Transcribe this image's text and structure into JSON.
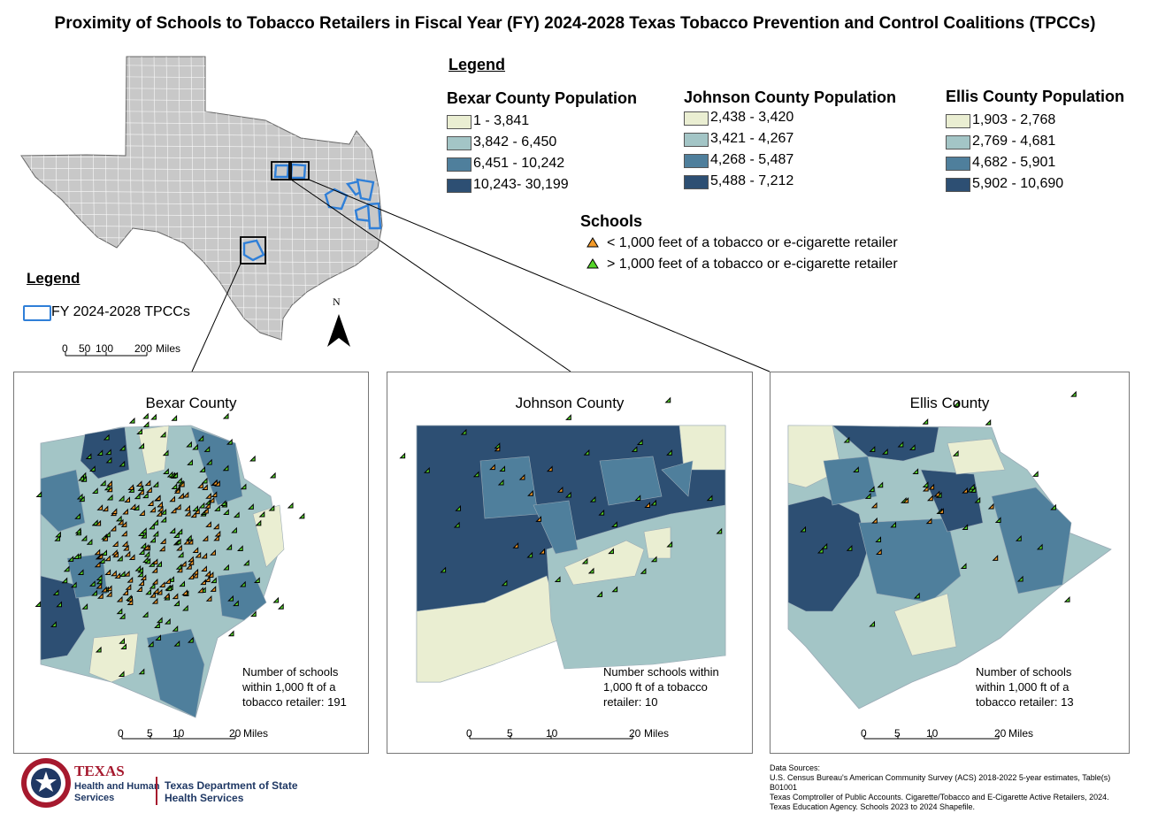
{
  "title": "Proximity of Schools to Tobacco Retailers in Fiscal Year (FY) 2024-2028 Texas Tobacco Prevention and Control Coalitions (TPCCs)",
  "colors": {
    "c1": "#eaeed2",
    "c2": "#a3c5c6",
    "c3": "#4f7f9c",
    "c4": "#2d4f73",
    "tpcc_outline": "#2f7fd8",
    "texas_fill": "#c8c8c8",
    "near": "#f39a28",
    "far": "#55d629"
  },
  "main_legend": {
    "heading": "Legend",
    "bexar": {
      "title": "Bexar County Population",
      "classes": [
        "1 - 3,841",
        "3,842 - 6,450",
        "6,451 - 10,242",
        "10,243- 30,199"
      ]
    },
    "johnson": {
      "title": "Johnson County Population",
      "classes": [
        "2,438 - 3,420",
        "3,421 - 4,267",
        "4,268 - 5,487",
        "5,488 - 7,212"
      ]
    },
    "ellis": {
      "title": "Ellis County Population",
      "classes": [
        "1,903 - 2,768",
        "2,769 - 4,681",
        "4,682 - 5,901",
        "5,902 - 10,690"
      ]
    },
    "schools": {
      "title": "Schools",
      "near_label": "< 1,000 feet of a tobacco or e-cigarette retailer",
      "far_label": "> 1,000 feet of a tobacco or e-cigarette retailer"
    }
  },
  "texas_legend": {
    "heading": "Legend",
    "item": "FY 2024-2028 TPCCs"
  },
  "north_label": "N",
  "texas_scale": {
    "labels": [
      "0",
      "50",
      "100",
      "200"
    ],
    "unit": "Miles"
  },
  "panels": {
    "bexar": {
      "title": "Bexar County",
      "note": "Number of schools within 1,000 ft of a tobacco retailer: 191",
      "scale_labels": [
        "0",
        "5",
        "10",
        "20"
      ],
      "scale_unit": "Miles"
    },
    "johnson": {
      "title": "Johnson County",
      "note": "Number schools within 1,000 ft of a tobacco retailer: 10",
      "scale_labels": [
        "0",
        "5",
        "10",
        "20"
      ],
      "scale_unit": "Miles"
    },
    "ellis": {
      "title": "Ellis County",
      "note": "Number of schools within 1,000 ft of a tobacco retailer: 13",
      "scale_labels": [
        "0",
        "5",
        "10",
        "20"
      ],
      "scale_unit": "Miles"
    }
  },
  "footer": {
    "hhs_line1": "TEXAS",
    "hhs_line2": "Health and Human",
    "hhs_line3": "Services",
    "dshs_line1": "Texas Department of State",
    "dshs_line2": "Health Services",
    "sources": [
      "Data Sources:",
      "U.S. Census Bureau's American Community Survey (ACS) 2018-2022 5-year estimates, Table(s)",
      "B01001",
      "Texas Comptroller of Public Accounts. Cigarette/Tobacco and E-Cigarette Active Retailers, 2024.",
      "Texas Education Agency. Schools 2023 to 2024 Shapefile."
    ]
  }
}
